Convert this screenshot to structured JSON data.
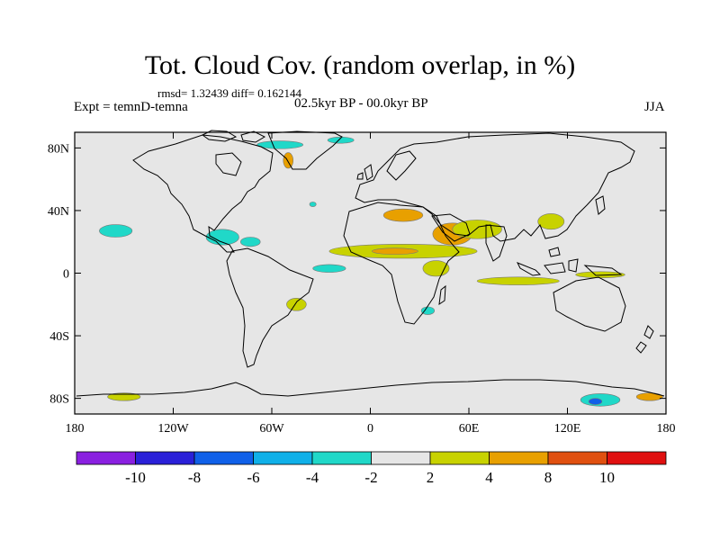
{
  "title": "Tot. Cloud Cov. (random overlap, in %)",
  "stats": "rmsd= 1.32439  diff= 0.162144",
  "experiment": "Expt = temnD-temna",
  "period": "02.5kyr BP - 00.0kyr BP",
  "season": "JJA",
  "map": {
    "projection": "cylindrical equidistant",
    "lon_range": [
      -180,
      180
    ],
    "lat_range": [
      -90,
      90
    ],
    "background_color": "#e6e6e6",
    "x_ticks": [
      {
        "value": -180,
        "label": "180"
      },
      {
        "value": -120,
        "label": "120W"
      },
      {
        "value": -60,
        "label": "60W"
      },
      {
        "value": 0,
        "label": "0"
      },
      {
        "value": 60,
        "label": "60E"
      },
      {
        "value": 120,
        "label": "120E"
      },
      {
        "value": 180,
        "label": "180"
      }
    ],
    "y_ticks": [
      {
        "value": 80,
        "label": "80N"
      },
      {
        "value": 40,
        "label": "40N"
      },
      {
        "value": 0,
        "label": "0"
      },
      {
        "value": -40,
        "label": "40S"
      },
      {
        "value": -80,
        "label": "80S"
      }
    ],
    "anomaly_regions": [
      {
        "lon": -155,
        "lat": 27,
        "rx": 10,
        "ry": 4,
        "class": "-4..-2"
      },
      {
        "lon": -90,
        "lat": 23,
        "rx": 10,
        "ry": 5,
        "class": "-4..-2"
      },
      {
        "lon": -73,
        "lat": 20,
        "rx": 6,
        "ry": 3,
        "class": "-4..-2"
      },
      {
        "lon": -25,
        "lat": 3,
        "rx": 10,
        "ry": 2.5,
        "class": "-4..-2"
      },
      {
        "lon": -55,
        "lat": 82,
        "rx": 14,
        "ry": 2.5,
        "class": "-4..-2"
      },
      {
        "lon": -18,
        "lat": 85,
        "rx": 8,
        "ry": 2,
        "class": "-4..-2"
      },
      {
        "lon": -35,
        "lat": 44,
        "rx": 2,
        "ry": 1.5,
        "class": "-4..-2"
      },
      {
        "lon": 140,
        "lat": -81,
        "rx": 12,
        "ry": 4,
        "class": "-4..-2"
      },
      {
        "lon": 137,
        "lat": -82,
        "rx": 4,
        "ry": 2,
        "class": "-8..-6"
      },
      {
        "lon": 35,
        "lat": -24,
        "rx": 4,
        "ry": 2.5,
        "class": "-4..-2"
      },
      {
        "lon": -150,
        "lat": -79,
        "rx": 10,
        "ry": 2.5,
        "class": "2..4"
      },
      {
        "lon": 170,
        "lat": -79,
        "rx": 8,
        "ry": 2.5,
        "class": "4..8"
      },
      {
        "lon": 20,
        "lat": 14,
        "rx": 45,
        "ry": 4.5,
        "class": "2..4"
      },
      {
        "lon": 15,
        "lat": 14,
        "rx": 14,
        "ry": 2,
        "class": "4..8"
      },
      {
        "lon": 50,
        "lat": 25,
        "rx": 12,
        "ry": 7,
        "class": "4..8"
      },
      {
        "lon": 65,
        "lat": 28,
        "rx": 15,
        "ry": 6,
        "class": "2..4"
      },
      {
        "lon": 20,
        "lat": 37,
        "rx": 12,
        "ry": 4,
        "class": "4..8"
      },
      {
        "lon": 90,
        "lat": -5,
        "rx": 25,
        "ry": 2.5,
        "class": "2..4"
      },
      {
        "lon": 140,
        "lat": -1,
        "rx": 15,
        "ry": 2,
        "class": "2..4"
      },
      {
        "lon": 110,
        "lat": 33,
        "rx": 8,
        "ry": 5,
        "class": "2..4"
      },
      {
        "lon": -45,
        "lat": -20,
        "rx": 6,
        "ry": 4,
        "class": "2..4"
      },
      {
        "lon": -50,
        "lat": 72,
        "rx": 3,
        "ry": 5,
        "class": "4..8"
      },
      {
        "lon": 40,
        "lat": 3,
        "rx": 8,
        "ry": 5,
        "class": "2..4"
      }
    ]
  },
  "colorbar": {
    "colors": [
      "#8a20e0",
      "#2a20d8",
      "#1060e8",
      "#10b0e8",
      "#20d8c8",
      "#e6e6e6",
      "#c8d200",
      "#e8a000",
      "#e05010",
      "#e01010"
    ],
    "labels": [
      "-10",
      "-8",
      "-6",
      "-4",
      "-2",
      "2",
      "4",
      "8",
      "10"
    ]
  }
}
